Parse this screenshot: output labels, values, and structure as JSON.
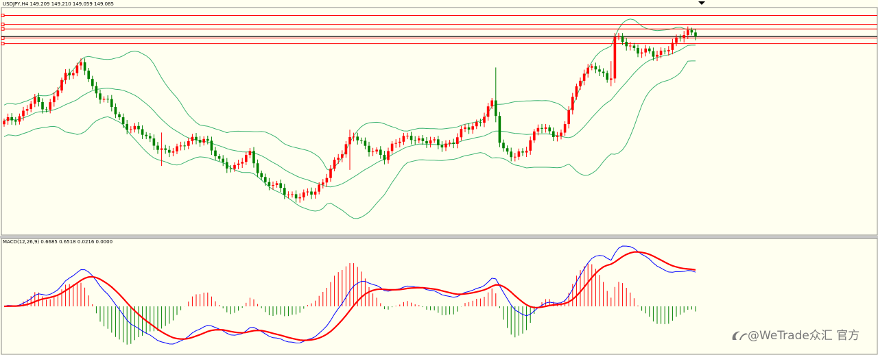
{
  "chart_data": {
    "type": "candlestick",
    "symbol": "USDJPY",
    "timeframe": "H4",
    "ohlc_header": "USDJPY,H4  149.209 149.210 149.059 149.085",
    "horizontal_levels": [
      149.95,
      149.55,
      149.35,
      148.95,
      148.7
    ],
    "indicators": {
      "bollinger_bands": "20-period envelope (upper / middle / lower)",
      "macd": {
        "label": "MACD(12,26,9) 0.6685 0.6518 0.0216 0.0000",
        "fast": 12,
        "slow": 26,
        "signal": 9,
        "values": [
          0.6685,
          0.6518,
          0.0216,
          0.0
        ]
      }
    },
    "colors": {
      "background": "#fffff0",
      "bull": "#ff0000",
      "bear": "#008000",
      "band": "#3cb371",
      "level": "#ff0000",
      "current_price_line": "#000000",
      "macd_line": "#0000ff",
      "signal_line": "#ff0000",
      "hist_pos": "#ff0000",
      "hist_neg": "#008000"
    }
  },
  "watermark": "@WeTrade众汇 官方",
  "watermark_icon": "wetrade-logo-icon"
}
